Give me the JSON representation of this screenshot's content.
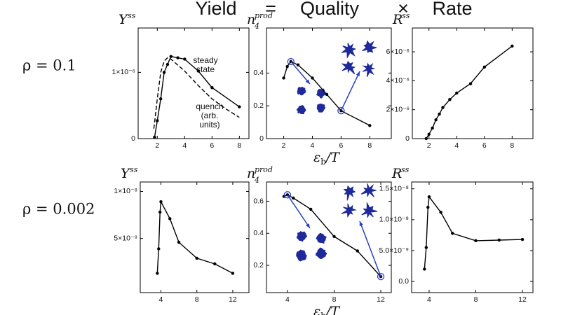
{
  "header": {
    "yield": "Yield",
    "equals": "=",
    "quality": "Quality",
    "times": "×",
    "rate": "Rate"
  },
  "row_labels": [
    "ρ = 0.1",
    "ρ = 0.002"
  ],
  "chart_data": [
    {
      "type": "line",
      "title": "Y",
      "title_sup": "ss",
      "xlim": [
        0.6,
        8.7
      ],
      "xticks": [
        2,
        4,
        6,
        8
      ],
      "ylim": [
        0,
        1.67e-06
      ],
      "yticks": [
        0,
        {
          "value": 1e-06,
          "label": "1×10⁻⁶"
        }
      ],
      "series": [
        {
          "name": "steady state",
          "color": "#000000",
          "style": "solid",
          "x": [
            1.8,
            2,
            2.25,
            2.5,
            2.75,
            3,
            3.5,
            4,
            5,
            6,
            8
          ],
          "values": [
            2e-08,
            2.7e-07,
            6e-07,
            1e-06,
            1.12e-06,
            1.24e-06,
            1.22e-06,
            1.2e-06,
            1.02e-06,
            7.7e-07,
            4.8e-07
          ]
        },
        {
          "name": "quench (arb. units)",
          "color": "#000000",
          "style": "dashed",
          "x": [
            1.75,
            2,
            2.25,
            2.5,
            2.75,
            3,
            4,
            5,
            6,
            7,
            8
          ],
          "values": [
            1.5e-07,
            6e-07,
            1e-06,
            1.17e-06,
            1.22e-06,
            1.2e-06,
            1.02e-06,
            8e-07,
            6e-07,
            4.5e-07,
            3.2e-07
          ]
        }
      ]
    },
    {
      "type": "line",
      "title": "n",
      "title_sub": "4",
      "title_sup": "prod",
      "xlabel": {
        "main": "ε",
        "sub": "b",
        "tail": "/T"
      },
      "xlim": [
        0.8,
        9.5
      ],
      "xticks": [
        2,
        4,
        6,
        8
      ],
      "ylim": [
        0,
        0.675
      ],
      "yticks": [
        0,
        0.2,
        0.4
      ],
      "highlight": [
        2,
        6
      ],
      "series": [
        {
          "color": "#000000",
          "style": "solid",
          "x": [
            2,
            2.25,
            2.5,
            3,
            4,
            5,
            6,
            8
          ],
          "values": [
            0.37,
            0.44,
            0.47,
            0.45,
            0.37,
            0.27,
            0.17,
            0.08
          ]
        }
      ]
    },
    {
      "type": "line",
      "title": "R",
      "title_sup": "ss",
      "xlim": [
        0.8,
        9.5
      ],
      "xticks": [
        2,
        4,
        6,
        8
      ],
      "ylim": [
        0,
        7.65e-06
      ],
      "yticks": [
        0,
        {
          "value": 2e-06,
          "label": "2×10⁻⁶"
        },
        {
          "value": 4e-06,
          "label": "4×10⁻⁶"
        },
        {
          "value": 6e-06,
          "label": "6×10⁻⁶"
        }
      ],
      "series": [
        {
          "color": "#000000",
          "style": "solid",
          "x": [
            1.8,
            2,
            2.25,
            2.5,
            2.75,
            3,
            3.5,
            4,
            5,
            6,
            8
          ],
          "values": [
            0,
            3e-07,
            7.3e-07,
            1.3e-06,
            1.7e-06,
            2.15e-06,
            2.7e-06,
            3.15e-06,
            3.8e-06,
            4.95e-06,
            6.4e-06
          ]
        }
      ]
    },
    {
      "type": "line",
      "title": "Y",
      "title_sup": "ss",
      "xlim": [
        1.7,
        13.8
      ],
      "xticks": [
        4,
        8,
        12
      ],
      "ylim": [
        -7.5e-10,
        1.1e-08
      ],
      "yticks": [
        {
          "value": 5e-09,
          "label": "5×10⁻⁹"
        },
        {
          "value": 1e-08,
          "label": "1×10⁻⁸"
        }
      ],
      "series": [
        {
          "color": "#000000",
          "style": "solid",
          "x": [
            3.6,
            3.75,
            3.9,
            4,
            5,
            6,
            8,
            10,
            12
          ],
          "values": [
            1.3e-09,
            3.9e-09,
            7.8e-09,
            8.9e-09,
            7.1e-09,
            4.6e-09,
            2.9e-09,
            2.3e-09,
            1.3e-09
          ]
        }
      ]
    },
    {
      "type": "line",
      "title": "n",
      "title_sub": "4",
      "title_sup": "prod",
      "xlabel": {
        "main": "ε",
        "sub": "b",
        "tail": "/T"
      },
      "xlim": [
        2.2,
        12.9
      ],
      "xticks": [
        4,
        8,
        12
      ],
      "ylim": [
        0.03,
        0.72
      ],
      "yticks": [
        0.2,
        0.4,
        0.6
      ],
      "highlight": [
        1,
        6
      ],
      "series": [
        {
          "color": "#000000",
          "style": "solid",
          "x": [
            3.7,
            4,
            4.5,
            6,
            8,
            10,
            12
          ],
          "values": [
            0.63,
            0.64,
            0.62,
            0.55,
            0.38,
            0.29,
            0.13
          ]
        }
      ]
    },
    {
      "type": "line",
      "title": "R",
      "title_sup": "ss",
      "xlim": [
        2.5,
        12.9
      ],
      "xticks": [
        4,
        8,
        12
      ],
      "ylim": [
        -1.8e-09,
        1.61e-08
      ],
      "yticks": [
        {
          "value": 0,
          "label": "0.0"
        },
        {
          "value": 5e-09,
          "label": "5.0×10⁻⁹"
        },
        {
          "value": 1e-08,
          "label": "1.0×10⁻⁸"
        },
        {
          "value": 1.5e-08,
          "label": "1.5×10⁻⁸"
        }
      ],
      "series": [
        {
          "color": "#000000",
          "style": "solid",
          "x": [
            3.6,
            3.75,
            3.9,
            4,
            5,
            6,
            8,
            10,
            12
          ],
          "values": [
            2e-09,
            5.5e-09,
            1.2e-08,
            1.37e-08,
            1.12e-08,
            7.8e-09,
            6.6e-09,
            6.7e-09,
            6.8e-09
          ]
        }
      ]
    }
  ]
}
